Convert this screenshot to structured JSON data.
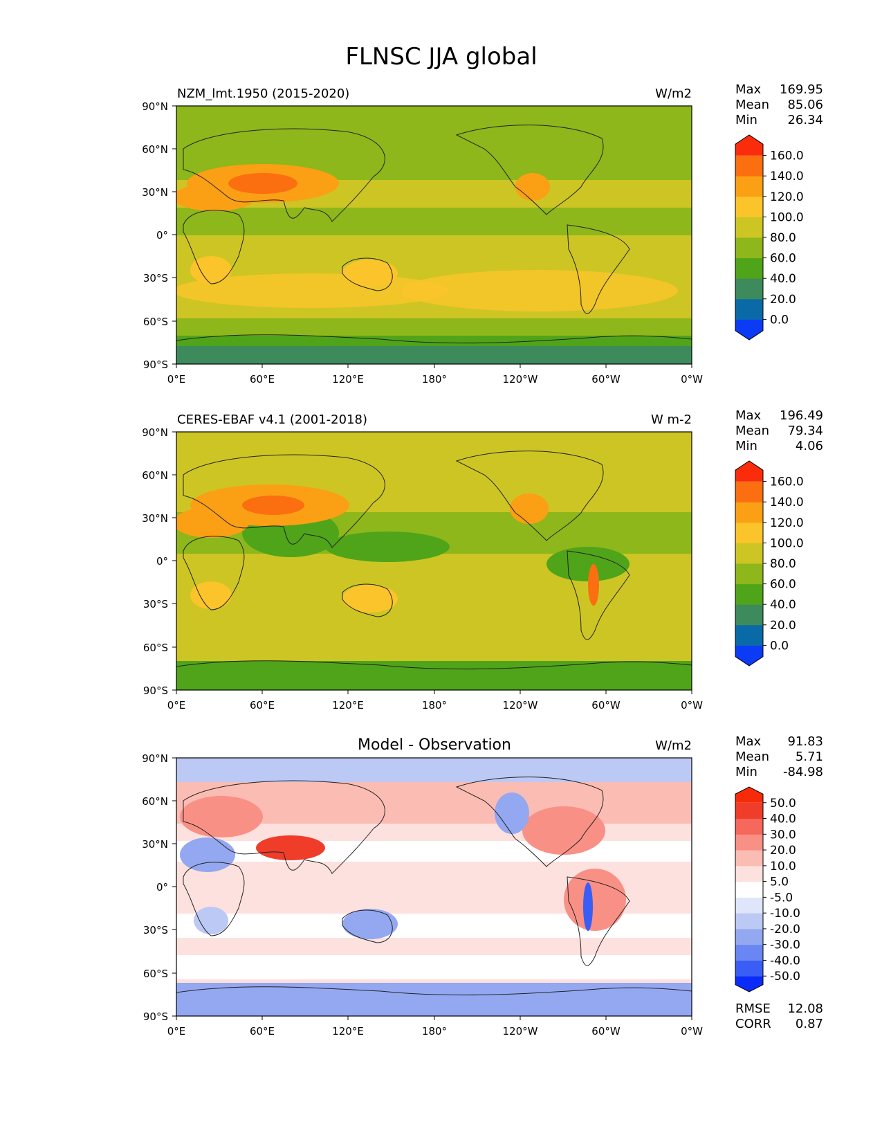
{
  "title": "FLNSC JJA global",
  "colors": {
    "abs_levels": [
      "#0b3bf5",
      "#0a6aa8",
      "#3d8a5c",
      "#4fa41a",
      "#8db71a",
      "#cdc524",
      "#fbc42a",
      "#fb9f15",
      "#fb6f10",
      "#fb2c0c"
    ],
    "diff_levels": [
      "#0b2cf8",
      "#3a5ef5",
      "#6a86f2",
      "#93a8f0",
      "#bcc9f4",
      "#dfe6fb",
      "#ffffff",
      "#fde1de",
      "#fbbcb4",
      "#f99086",
      "#f5685b",
      "#ef3d2a",
      "#f72a0a"
    ],
    "land": "#3a8a5a",
    "ocean": "#8db71a"
  },
  "chart_data": [
    {
      "type": "heatmap",
      "panel_title": "NZM_lmt.1950 (2015-2020)",
      "units": "W/m2",
      "stats": {
        "Max": "169.95",
        "Mean": "85.06",
        "Min": "26.34"
      },
      "stat_labels": [
        "Max",
        "Mean",
        "Min"
      ],
      "yticks": [
        "90°N",
        "60°N",
        "30°N",
        "0°",
        "30°S",
        "60°S",
        "90°S"
      ],
      "xticks": [
        "0°E",
        "60°E",
        "120°E",
        "180°",
        "120°W",
        "60°W",
        "0°W"
      ],
      "colorbar": {
        "levels": [
          "160.0",
          "140.0",
          "120.0",
          "100.0",
          "80.0",
          "60.0",
          "40.0",
          "20.0",
          "0.0"
        ],
        "extend": "both"
      }
    },
    {
      "type": "heatmap",
      "panel_title": "CERES-EBAF v4.1 (2001-2018)",
      "units": "W m-2",
      "stats": {
        "Max": "196.49",
        "Mean": "79.34",
        "Min": "4.06"
      },
      "stat_labels": [
        "Max",
        "Mean",
        "Min"
      ],
      "yticks": [
        "90°N",
        "60°N",
        "30°N",
        "0°",
        "30°S",
        "60°S",
        "90°S"
      ],
      "xticks": [
        "0°E",
        "60°E",
        "120°E",
        "180°",
        "120°W",
        "60°W",
        "0°W"
      ],
      "colorbar": {
        "levels": [
          "160.0",
          "140.0",
          "120.0",
          "100.0",
          "80.0",
          "60.0",
          "40.0",
          "20.0",
          "0.0"
        ],
        "extend": "both"
      }
    },
    {
      "type": "heatmap",
      "panel_title": "Model - Observation",
      "units": "W/m2",
      "stats": {
        "Max": "91.83",
        "Mean": "5.71",
        "Min": "-84.98"
      },
      "stat_labels": [
        "Max",
        "Mean",
        "Min"
      ],
      "yticks": [
        "90°N",
        "60°N",
        "30°N",
        "0°",
        "30°S",
        "60°S",
        "90°S"
      ],
      "xticks": [
        "0°E",
        "60°E",
        "120°E",
        "180°",
        "120°W",
        "60°W",
        "0°W"
      ],
      "colorbar": {
        "levels": [
          "50.0",
          "40.0",
          "30.0",
          "20.0",
          "10.0",
          "5.0",
          "-5.0",
          "-10.0",
          "-20.0",
          "-30.0",
          "-40.0",
          "-50.0"
        ],
        "extend": "both"
      },
      "metrics": {
        "RMSE": "12.08",
        "CORR": "0.87"
      },
      "metric_labels": [
        "RMSE",
        "CORR"
      ]
    }
  ]
}
